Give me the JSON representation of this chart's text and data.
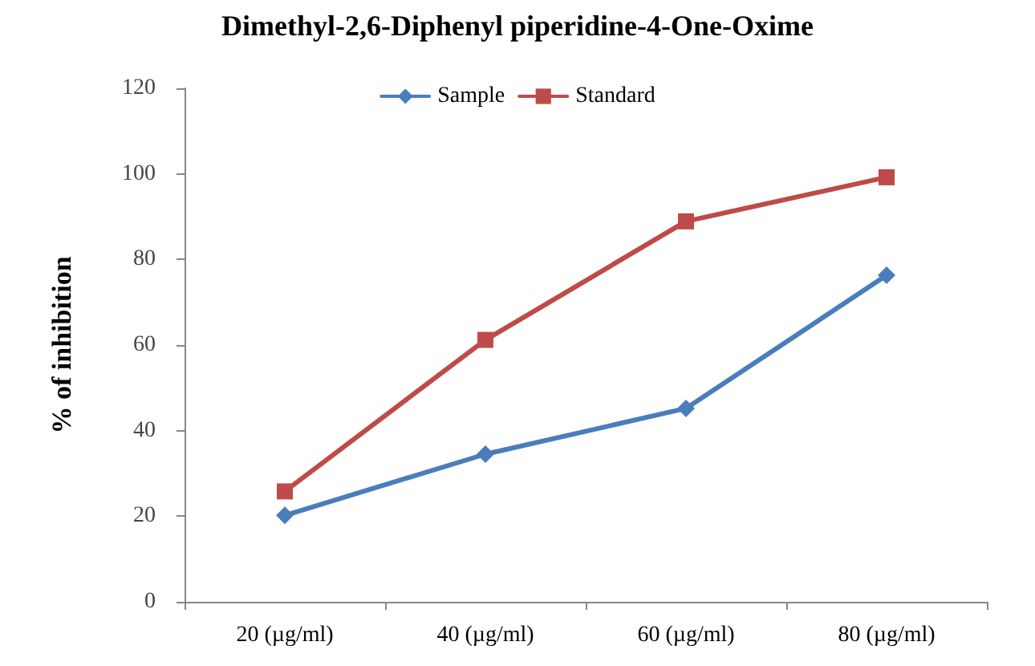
{
  "chart_data": {
    "type": "line",
    "title": "Dimethyl-2,6-Diphenyl piperidine-4-One-Oxime",
    "ylabel": "% of inhibition",
    "categories": [
      "20 (µg/ml)",
      "40 (µg/ml)",
      "60 (µg/ml)",
      "80 (µg/ml)"
    ],
    "series": [
      {
        "name": "Sample",
        "color": "#4a7ebb",
        "marker": "diamond",
        "values": [
          20.2,
          34.5,
          45.2,
          76.3
        ]
      },
      {
        "name": "Standard",
        "color": "#be4b48",
        "marker": "square",
        "values": [
          25.8,
          61.2,
          88.9,
          99.2
        ]
      }
    ],
    "ylim": [
      0,
      120
    ],
    "yticks": [
      0,
      20,
      40,
      60,
      80,
      100,
      120
    ],
    "grid": false,
    "legend": "top"
  }
}
